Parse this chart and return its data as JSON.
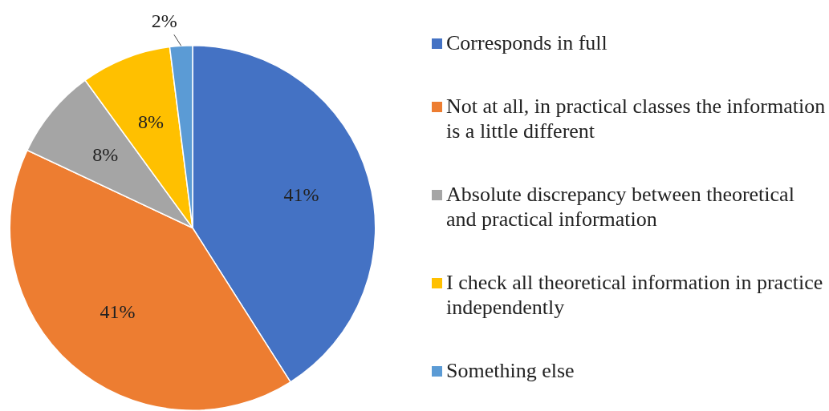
{
  "chart_data": {
    "type": "pie",
    "categories": [
      "Corresponds in full",
      "Not at all, in practical classes the information is a little different",
      "Absolute discrepancy between theoretical and practical information",
      "I check all theoretical information in practice independently",
      "Something else"
    ],
    "values": [
      41,
      41,
      8,
      8,
      2
    ],
    "colors": [
      "#4472c4",
      "#ed7d31",
      "#a5a5a5",
      "#ffc000",
      "#5b9bd5"
    ],
    "value_labels": [
      "41%",
      "41%",
      "8%",
      "8%",
      "2%"
    ],
    "legend": "right"
  }
}
